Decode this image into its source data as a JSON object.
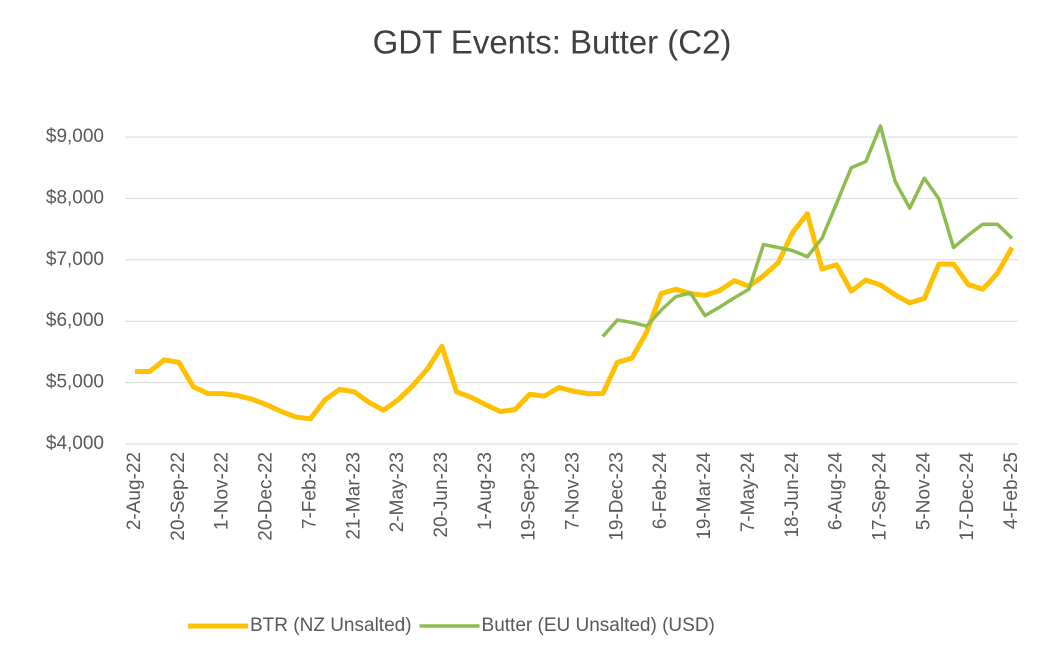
{
  "chart_data": {
    "type": "line",
    "title": "GDT Events: Butter (C2)",
    "categories": [
      "2-Aug-22",
      null,
      null,
      "20-Sep-22",
      null,
      null,
      "1-Nov-22",
      null,
      null,
      "20-Dec-22",
      null,
      null,
      "7-Feb-23",
      null,
      null,
      "21-Mar-23",
      null,
      null,
      "2-May-23",
      null,
      null,
      "20-Jun-23",
      null,
      null,
      "1-Aug-23",
      null,
      null,
      "19-Sep-23",
      null,
      null,
      "7-Nov-23",
      null,
      null,
      "19-Dec-23",
      null,
      null,
      "6-Feb-24",
      null,
      null,
      "19-Mar-24",
      null,
      null,
      "7-May-24",
      null,
      null,
      "18-Jun-24",
      null,
      null,
      "6-Aug-24",
      null,
      null,
      "17-Sep-24",
      null,
      null,
      "5-Nov-24",
      null,
      null,
      "17-Dec-24",
      null,
      null,
      "4-Feb-25"
    ],
    "series": [
      {
        "name": "BTR (NZ Unsalted)",
        "color": "#ffc000",
        "values": [
          5180,
          5180,
          5370,
          5330,
          4930,
          4820,
          4820,
          4790,
          4730,
          4640,
          4530,
          4440,
          4410,
          4720,
          4890,
          4850,
          4680,
          4550,
          4720,
          4950,
          5220,
          5590,
          4850,
          4760,
          4640,
          4530,
          4560,
          4810,
          4780,
          4920,
          4860,
          4820,
          4820,
          5330,
          5400,
          5820,
          6450,
          6520,
          6450,
          6420,
          6500,
          6660,
          6570,
          6740,
          6950,
          7450,
          7750,
          6850,
          6920,
          6490,
          6670,
          6590,
          6430,
          6300,
          6370,
          6930,
          6930,
          6600,
          6520,
          6780,
          7200
        ]
      },
      {
        "name": "Butter (EU Unsalted) (USD)",
        "color": "#8fbc4e",
        "values": [
          null,
          null,
          null,
          null,
          null,
          null,
          null,
          null,
          null,
          null,
          null,
          null,
          null,
          null,
          null,
          null,
          null,
          null,
          null,
          null,
          null,
          null,
          null,
          null,
          null,
          null,
          null,
          null,
          null,
          null,
          null,
          null,
          5750,
          6020,
          5980,
          5920,
          6180,
          6400,
          6460,
          6090,
          6230,
          6380,
          6520,
          7250,
          7200,
          7150,
          7050,
          7350,
          7920,
          8500,
          8600,
          9180,
          8280,
          7840,
          8330,
          7990,
          7200,
          7400,
          7580,
          7580,
          7350
        ]
      }
    ],
    "ylim": [
      4000,
      9000
    ],
    "yticks": [
      {
        "value": 4000,
        "label": "$4,000"
      },
      {
        "value": 5000,
        "label": "$5,000"
      },
      {
        "value": 6000,
        "label": "$6,000"
      },
      {
        "value": 7000,
        "label": "$7,000"
      },
      {
        "value": 8000,
        "label": "$8,000"
      },
      {
        "value": 9000,
        "label": "$9,000"
      }
    ],
    "grid": true,
    "legend": "bottom"
  }
}
